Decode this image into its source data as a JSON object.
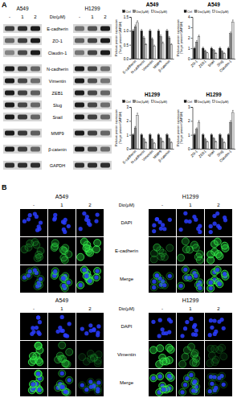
{
  "figure_labels": [
    "A",
    "B"
  ],
  "western_blot": {
    "cell_lines": [
      "A549",
      "H1299"
    ],
    "treatment_label": "Dio(μM)",
    "doses": [
      "-",
      "1",
      "2"
    ],
    "proteins": [
      "E-cadherin",
      "ZO-1",
      "Claudin-1",
      "N-cadherin",
      "Vimentin",
      "ZEB1",
      "Slug",
      "Snail",
      "MMP9",
      "β-catenin",
      "GAPDH"
    ]
  },
  "chart_data": [
    {
      "type": "bar",
      "title": "A549",
      "y_label": [
        "Relative protein expression",
        "(Target protein/GAPDH)"
      ],
      "categories": [
        "E-cadherin",
        "N-cadherin",
        "Vimentin",
        "MMP9",
        "β-catenin"
      ],
      "series": [
        {
          "name": "Ctrl",
          "color": "#1a1a1a",
          "values": [
            1.0,
            1.0,
            1.0,
            1.0,
            1.0
          ],
          "errors": [
            0.05,
            0.05,
            0.05,
            0.05,
            0.05
          ]
        },
        {
          "name": "Dio(1μM)",
          "color": "#808080",
          "values": [
            1.15,
            0.75,
            0.7,
            0.8,
            0.75
          ],
          "errors": [
            0.06,
            0.05,
            0.05,
            0.05,
            0.05
          ]
        },
        {
          "name": "Dio(2μM)",
          "color": "#d9d9d9",
          "values": [
            1.3,
            0.5,
            0.45,
            0.55,
            0.5
          ],
          "errors": [
            0.06,
            0.04,
            0.04,
            0.05,
            0.04
          ]
        }
      ],
      "ylim": [
        0,
        1.5
      ],
      "yticks": [
        {
          "value": 0,
          "label": "0.0"
        },
        0.5,
        {
          "value": 1,
          "label": "1.0"
        },
        1.5
      ],
      "legend": "top"
    },
    {
      "type": "bar",
      "title": "A549",
      "y_label": [
        "Relative protein expression",
        "(Target protein/GAPDH)"
      ],
      "categories": [
        "ZO-1",
        "ZEB1",
        "Snail",
        "Slug",
        "Claudin-1"
      ],
      "series": [
        {
          "name": "Ctrl",
          "color": "#1a1a1a",
          "values": [
            1.0,
            1.0,
            1.0,
            1.0,
            1.0
          ],
          "errors": [
            0.1,
            0.1,
            0.1,
            0.1,
            0.1
          ]
        },
        {
          "name": "Dio(1μM)",
          "color": "#808080",
          "values": [
            1.6,
            0.75,
            0.8,
            0.7,
            2.4
          ],
          "errors": [
            0.12,
            0.08,
            0.08,
            0.07,
            0.15
          ]
        },
        {
          "name": "Dio(2μM)",
          "color": "#d9d9d9",
          "values": [
            2.1,
            0.55,
            0.5,
            0.5,
            3.5
          ],
          "errors": [
            0.15,
            0.06,
            0.06,
            0.06,
            0.2
          ]
        }
      ],
      "ylim": [
        0,
        4
      ],
      "yticks": [
        0,
        1,
        2,
        3,
        4
      ],
      "legend": "top"
    },
    {
      "type": "bar",
      "title": "H1299",
      "y_label": [
        "Relative protein expression",
        "(Target protein/GAPDH)"
      ],
      "categories": [
        "E-cadherin",
        "N-cadherin",
        "Vimentin",
        "MMP9",
        "β-catenin"
      ],
      "series": [
        {
          "name": "Ctrl",
          "color": "#1a1a1a",
          "values": [
            1.0,
            1.0,
            1.0,
            1.0,
            1.0
          ],
          "errors": [
            0.08,
            0.08,
            0.08,
            0.08,
            0.08
          ]
        },
        {
          "name": "Dio(1μM)",
          "color": "#808080",
          "values": [
            1.5,
            0.7,
            0.65,
            0.75,
            0.7
          ],
          "errors": [
            0.1,
            0.06,
            0.06,
            0.06,
            0.06
          ]
        },
        {
          "name": "Dio(2μM)",
          "color": "#d9d9d9",
          "values": [
            2.4,
            0.45,
            0.4,
            0.5,
            0.45
          ],
          "errors": [
            0.15,
            0.05,
            0.05,
            0.05,
            0.05
          ]
        }
      ],
      "ylim": [
        0,
        3
      ],
      "yticks": [
        0,
        1,
        2,
        3
      ],
      "legend": "top"
    },
    {
      "type": "bar",
      "title": "H1299",
      "y_label": [
        "Relative protein expression",
        "(Target protein/GAPDH)"
      ],
      "categories": [
        "ZO-1",
        "ZEB1",
        "Snail",
        "Slug",
        "Claudin-1"
      ],
      "series": [
        {
          "name": "Ctrl",
          "color": "#1a1a1a",
          "values": [
            1.0,
            1.0,
            1.0,
            1.0,
            1.0
          ],
          "errors": [
            0.08,
            0.08,
            0.08,
            0.08,
            0.08
          ]
        },
        {
          "name": "Dio(1μM)",
          "color": "#808080",
          "values": [
            1.4,
            0.7,
            0.75,
            0.7,
            1.9
          ],
          "errors": [
            0.1,
            0.06,
            0.06,
            0.06,
            0.12
          ]
        },
        {
          "name": "Dio(2μM)",
          "color": "#d9d9d9",
          "values": [
            1.9,
            0.5,
            0.5,
            0.45,
            2.6
          ],
          "errors": [
            0.12,
            0.05,
            0.05,
            0.05,
            0.15
          ]
        }
      ],
      "ylim": [
        0,
        3
      ],
      "yticks": [
        0,
        1,
        2,
        3
      ],
      "legend": "top"
    }
  ],
  "immunofluorescence": [
    {
      "cell_lines": [
        "A549",
        "H1299"
      ],
      "treatment_label": "Dio(μM)",
      "doses": [
        "-",
        "1",
        "2"
      ],
      "channels": [
        "DAPI",
        "E-cadherin",
        "Merge"
      ]
    },
    {
      "cell_lines": [
        "A549",
        "H1299"
      ],
      "treatment_label": "Dio(μM)",
      "doses": [
        "-",
        "1",
        "2"
      ],
      "channels": [
        "DAPI",
        "Vimentin",
        "Merge"
      ]
    }
  ]
}
